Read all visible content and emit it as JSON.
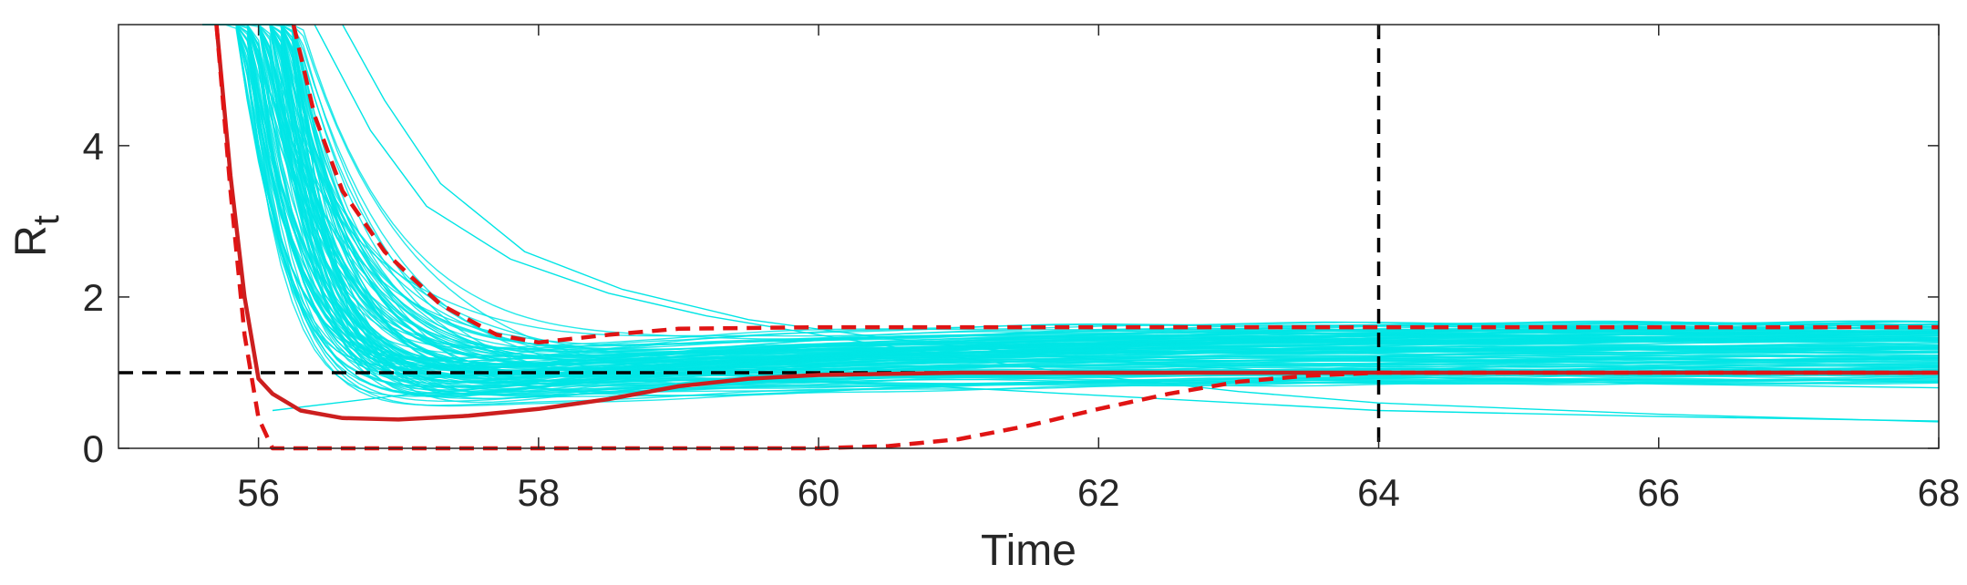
{
  "chart_data": {
    "type": "line",
    "xlabel": "Time",
    "ylabel": "R",
    "ylabel_subscript": "t",
    "xlim": [
      55,
      68
    ],
    "ylim": [
      0,
      5.6
    ],
    "xticks": [
      56,
      58,
      60,
      62,
      64,
      66,
      68
    ],
    "yticks": [
      0,
      2,
      4
    ],
    "grid": false,
    "colors": {
      "samples": "#00e5e5",
      "mean": "#cc1f1f",
      "bounds": "#e01414",
      "reference": "#000000"
    },
    "reference_lines": {
      "horizontal_y": 1,
      "vertical_x": 64
    },
    "series": [
      {
        "style": "solid",
        "x": [
          55.7,
          55.8,
          55.9,
          56.0,
          56.1,
          56.3,
          56.6,
          57.0,
          57.5,
          58.0,
          58.5,
          59.0,
          59.5,
          60.0,
          61.0,
          62.0,
          63.0,
          64.0,
          66.0,
          68.0
        ],
        "y": [
          5.6,
          3.6,
          2.0,
          0.92,
          0.72,
          0.5,
          0.4,
          0.38,
          0.43,
          0.52,
          0.65,
          0.82,
          0.92,
          0.97,
          1.0,
          1.0,
          1.0,
          1.0,
          1.0,
          1.0
        ]
      },
      {
        "style": "dashed",
        "x": [
          56.25,
          56.4,
          56.6,
          56.9,
          57.3,
          57.7,
          58.0,
          58.5,
          59.0,
          60.0,
          62.0,
          64.0,
          66.0,
          68.0
        ],
        "y": [
          5.6,
          4.4,
          3.4,
          2.6,
          1.9,
          1.5,
          1.4,
          1.5,
          1.58,
          1.6,
          1.6,
          1.6,
          1.6,
          1.6
        ]
      },
      {
        "style": "dashed",
        "x": [
          55.7,
          55.8,
          55.9,
          56.0,
          56.1,
          58.0,
          60.0,
          60.5,
          61.0,
          61.5,
          62.0,
          62.5,
          63.0,
          63.5,
          64.0,
          66.0,
          68.0
        ],
        "y": [
          5.6,
          3.4,
          1.5,
          0.4,
          0.0,
          0.0,
          0.0,
          0.03,
          0.12,
          0.3,
          0.52,
          0.72,
          0.88,
          0.96,
          1.0,
          1.0,
          1.0
        ]
      }
    ]
  }
}
